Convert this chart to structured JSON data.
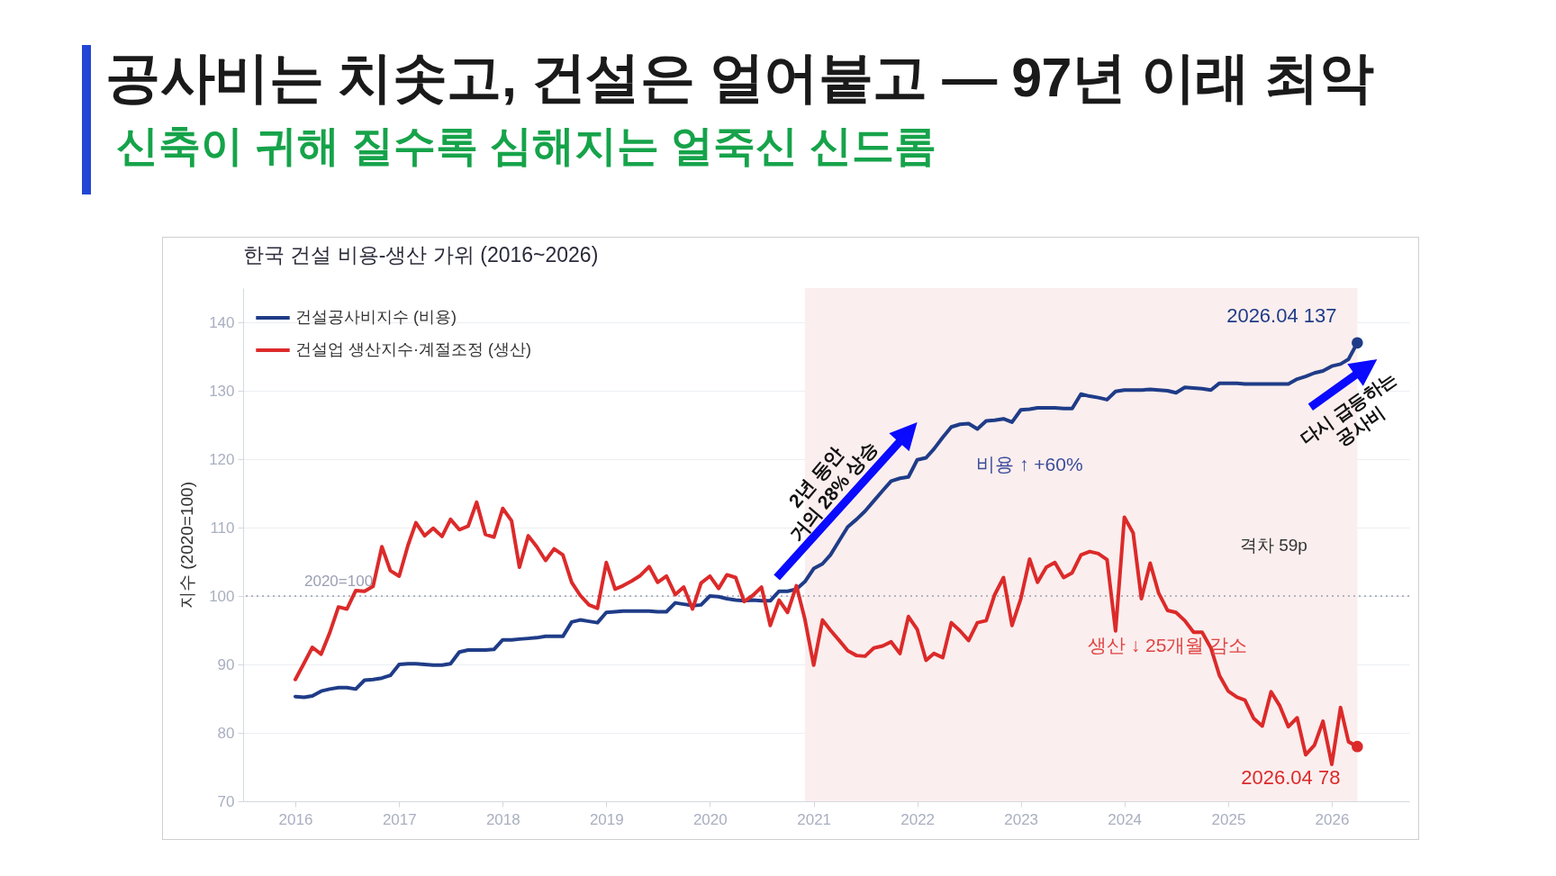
{
  "chart_data": {
    "type": "line",
    "title": "공사비는 치솟고, 건설은 얼어붙고 — 97년 이래 최악",
    "subtitle": "신축이 귀해 질수록 심해지는 얼죽신 신드롬",
    "ylabel": "지수 (2020=100)",
    "x": [
      "2016-01",
      "2016-02",
      "2016-03",
      "2016-04",
      "2016-05",
      "2016-06",
      "2016-07",
      "2016-08",
      "2016-09",
      "2016-10",
      "2016-11",
      "2016-12",
      "2017-01",
      "2017-02",
      "2017-03",
      "2017-04",
      "2017-05",
      "2017-06",
      "2017-07",
      "2017-08",
      "2017-09",
      "2017-10",
      "2017-11",
      "2017-12",
      "2018-01",
      "2018-02",
      "2018-03",
      "2018-04",
      "2018-05",
      "2018-06",
      "2018-07",
      "2018-08",
      "2018-09",
      "2018-10",
      "2018-11",
      "2018-12",
      "2019-01",
      "2019-02",
      "2019-03",
      "2019-04",
      "2019-05",
      "2019-06",
      "2019-07",
      "2019-08",
      "2019-09",
      "2019-10",
      "2019-11",
      "2019-12",
      "2020-01",
      "2020-02",
      "2020-03",
      "2020-04",
      "2020-05",
      "2020-06",
      "2020-07",
      "2020-08",
      "2020-09",
      "2020-10",
      "2020-11",
      "2020-12",
      "2021-01",
      "2021-02",
      "2021-03",
      "2021-04",
      "2021-05",
      "2021-06",
      "2021-07",
      "2021-08",
      "2021-09",
      "2021-10",
      "2021-11",
      "2021-12",
      "2022-01",
      "2022-02",
      "2022-03",
      "2022-04",
      "2022-05",
      "2022-06",
      "2022-07",
      "2022-08",
      "2022-09",
      "2022-10",
      "2022-11",
      "2022-12",
      "2023-01",
      "2023-02",
      "2023-03",
      "2023-04",
      "2023-05",
      "2023-06",
      "2023-07",
      "2023-08",
      "2023-09",
      "2023-10",
      "2023-11",
      "2023-12",
      "2024-01",
      "2024-02",
      "2024-03",
      "2024-04",
      "2024-05",
      "2024-06",
      "2024-07",
      "2024-08",
      "2024-09",
      "2024-10",
      "2024-11",
      "2024-12",
      "2025-01",
      "2025-02",
      "2025-03",
      "2025-04",
      "2025-05",
      "2025-06",
      "2025-07",
      "2025-08",
      "2025-09",
      "2025-10",
      "2025-11",
      "2025-12",
      "2026-01",
      "2026-02",
      "2026-03",
      "2026-04"
    ],
    "series": [
      {
        "name": "건설공사비지수 (비용)",
        "color": "#1f3c88",
        "values": [
          85.3,
          85.2,
          85.4,
          86.1,
          86.4,
          86.6,
          86.6,
          86.4,
          87.7,
          87.8,
          88.0,
          88.4,
          90.0,
          90.1,
          90.1,
          90.0,
          89.9,
          89.9,
          90.1,
          91.8,
          92.1,
          92.1,
          92.1,
          92.2,
          93.6,
          93.6,
          93.7,
          93.8,
          93.9,
          94.1,
          94.1,
          94.1,
          96.2,
          96.5,
          96.3,
          96.1,
          97.6,
          97.7,
          97.8,
          97.8,
          97.8,
          97.8,
          97.7,
          97.7,
          99.0,
          98.8,
          98.6,
          98.7,
          100.0,
          99.9,
          99.6,
          99.4,
          99.3,
          99.4,
          99.3,
          99.3,
          100.7,
          100.7,
          101.0,
          102.1,
          104.0,
          104.7,
          106.0,
          108.1,
          110.1,
          111.2,
          112.4,
          113.9,
          115.4,
          116.8,
          117.2,
          117.4,
          119.9,
          120.2,
          121.5,
          123.2,
          124.7,
          125.1,
          125.2,
          124.4,
          125.6,
          125.7,
          125.9,
          125.4,
          127.2,
          127.3,
          127.5,
          127.5,
          127.5,
          127.4,
          127.4,
          129.5,
          129.2,
          129.0,
          128.7,
          129.9,
          130.1,
          130.1,
          130.1,
          130.2,
          130.1,
          130.0,
          129.7,
          130.5,
          130.4,
          130.3,
          130.1,
          131.1,
          131.1,
          131.1,
          131.0,
          131.0,
          131.0,
          131.0,
          131.0,
          131.0,
          131.7,
          132.1,
          132.6,
          132.9,
          133.6,
          133.9,
          134.6,
          137
        ]
      },
      {
        "name": "건설업 생산지수·계절조정 (생산)",
        "color": "#dc2a2a",
        "values": [
          87.8,
          90.2,
          92.5,
          91.5,
          94.6,
          98.4,
          98.1,
          100.8,
          100.7,
          101.4,
          107.2,
          103.7,
          102.9,
          107.4,
          110.7,
          108.8,
          109.9,
          108.7,
          111.2,
          109.7,
          110.2,
          113.7,
          109.0,
          108.6,
          112.8,
          111.0,
          104.2,
          108.8,
          107.2,
          105.2,
          106.9,
          106.0,
          102.0,
          100.1,
          98.7,
          98.2,
          104.9,
          101.0,
          101.5,
          102.2,
          103.0,
          104.3,
          102.0,
          102.9,
          100.2,
          101.3,
          98.1,
          101.9,
          102.9,
          101.1,
          103.1,
          102.7,
          99.2,
          100.1,
          101.3,
          95.7,
          99.4,
          97.6,
          101.5,
          96.6,
          89.9,
          96.5,
          95.0,
          93.5,
          92.0,
          91.3,
          91.2,
          92.4,
          92.7,
          93.3,
          91.6,
          97.0,
          95.1,
          90.6,
          91.6,
          91.0,
          96.1,
          94.9,
          93.5,
          96.1,
          96.4,
          100.2,
          102.7,
          95.7,
          99.6,
          105.4,
          102.0,
          104.2,
          104.9,
          102.7,
          103.4,
          106.0,
          106.5,
          106.2,
          105.3,
          94.9,
          111.5,
          109.2,
          99.6,
          104.8,
          100.4,
          97.9,
          97.6,
          96.4,
          94.7,
          94.7,
          92.4,
          88.4,
          86.1,
          85.2,
          84.8,
          82.1,
          81.0,
          86.0,
          84.0,
          80.9,
          82.2,
          76.8,
          78.2,
          81.7,
          75.4,
          83.7,
          78.7,
          78
        ]
      }
    ],
    "xlim": [
      "2015-07",
      "2026-10"
    ],
    "xticks": [
      "2016",
      "2017",
      "2018",
      "2019",
      "2020",
      "2021",
      "2022",
      "2023",
      "2024",
      "2025",
      "2026"
    ],
    "ylim": [
      70,
      145
    ],
    "yticks": [
      70,
      80,
      90,
      100,
      110,
      120,
      130,
      140
    ],
    "grid": "y",
    "legend": "top left",
    "ref_lines": [
      {
        "axis": "y",
        "value": 100,
        "label": "2020=100",
        "line_style": "dotted",
        "color": "#9aa0b4"
      }
    ],
    "bands": [
      {
        "axis": "x",
        "from": "2020-12",
        "to": "2026-04",
        "color": "#fbeeee"
      }
    ],
    "annotations": [
      "한국 건설 비용-생산 가위 (2016~2026)",
      "2년 동안\n거의 28% 상승",
      "비용 ↑ +60%",
      "격차 59p",
      "생산 ↓ 25개월 감소",
      "다시 급등하는\n공사비",
      {
        "text": "2026.04  137",
        "x": "2026-04",
        "y": 137
      },
      {
        "text": "2026.04  78",
        "x": "2026-04",
        "y": 78
      }
    ]
  }
}
